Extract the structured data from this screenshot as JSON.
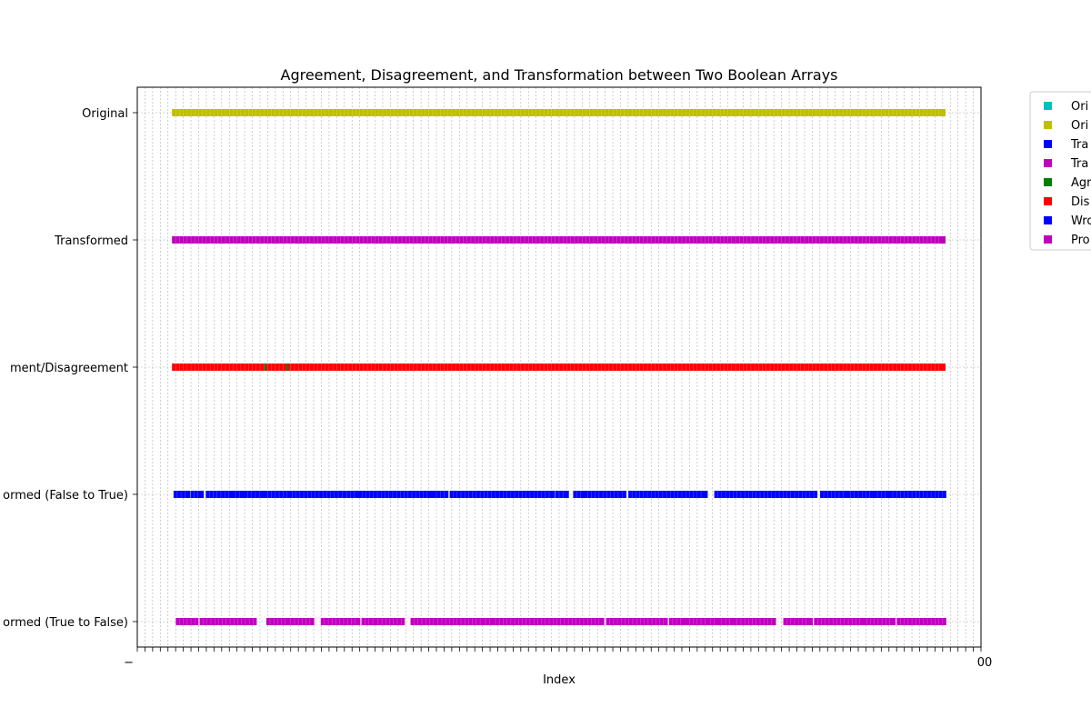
{
  "chart_data": {
    "type": "scatter",
    "title": "Agreement, Disagreement, and Transformation between Two Boolean Arrays",
    "xlabel": "Index",
    "xlim": [
      -50,
      1050
    ],
    "x_tick_step": 10,
    "x_tick_label_first": "−",
    "x_tick_label_last": "00",
    "grid": true,
    "legend_placement": "outside-top-right",
    "rows": [
      "Original",
      "Transformed",
      "ment/Disagreement",
      "ormed (False to True)",
      "ormed (True to False)"
    ],
    "legend": [
      {
        "label": "Ori",
        "color": "#00bfbf"
      },
      {
        "label": "Ori",
        "color": "#bfbf00"
      },
      {
        "label": "Tra",
        "color": "#0000ff"
      },
      {
        "label": "Tra",
        "color": "#bf00bf"
      },
      {
        "label": "Agr",
        "color": "#008000"
      },
      {
        "label": "Dis",
        "color": "#ff0000"
      },
      {
        "label": "Wro",
        "color": "#0000ff"
      },
      {
        "label": "Pro",
        "color": "#bf00bf"
      }
    ],
    "series": [
      {
        "row": 0,
        "color": "#bfbf00",
        "ranges": [
          [
            0,
            999
          ]
        ]
      },
      {
        "row": 1,
        "color": "#bf00bf",
        "ranges": [
          [
            0,
            999
          ]
        ]
      },
      {
        "row": 2,
        "color": "#ff0000",
        "ranges": [
          [
            0,
            999
          ]
        ]
      },
      {
        "row": 2,
        "color": "#008000",
        "points": [
          117,
          146
        ]
      },
      {
        "row": 3,
        "color": "#0000ff",
        "ranges": [
          [
            2,
            14
          ],
          [
            24,
            32
          ],
          [
            44,
            72
          ],
          [
            78,
            85
          ],
          [
            94,
            112
          ],
          [
            120,
            146
          ],
          [
            152,
            218
          ],
          [
            223,
            236
          ],
          [
            243,
            332
          ],
          [
            340,
            351
          ],
          [
            362,
            490
          ],
          [
            500,
            508
          ],
          [
            523,
            528
          ],
          [
            537,
            583
          ],
          [
            595,
            689
          ],
          [
            707,
            832
          ],
          [
            845,
            874
          ],
          [
            880,
            908
          ],
          [
            915,
            928
          ],
          [
            935,
            1000
          ]
        ]
      },
      {
        "row": 4,
        "color": "#bf00bf",
        "ranges": [
          [
            5,
            25
          ],
          [
            36,
            101
          ],
          [
            123,
            144
          ],
          [
            150,
            176
          ],
          [
            194,
            236
          ],
          [
            247,
            257
          ],
          [
            264,
            294
          ],
          [
            311,
            337
          ],
          [
            342,
            398
          ],
          [
            404,
            413
          ],
          [
            417,
            554
          ],
          [
            566,
            637
          ],
          [
            648,
            661
          ],
          [
            670,
            690
          ],
          [
            697,
            706
          ],
          [
            712,
            724
          ],
          [
            732,
            778
          ],
          [
            797,
            812
          ],
          [
            817,
            826
          ],
          [
            837,
            898
          ],
          [
            901,
            934
          ],
          [
            945,
            975
          ],
          [
            980,
            1000
          ]
        ]
      }
    ]
  }
}
